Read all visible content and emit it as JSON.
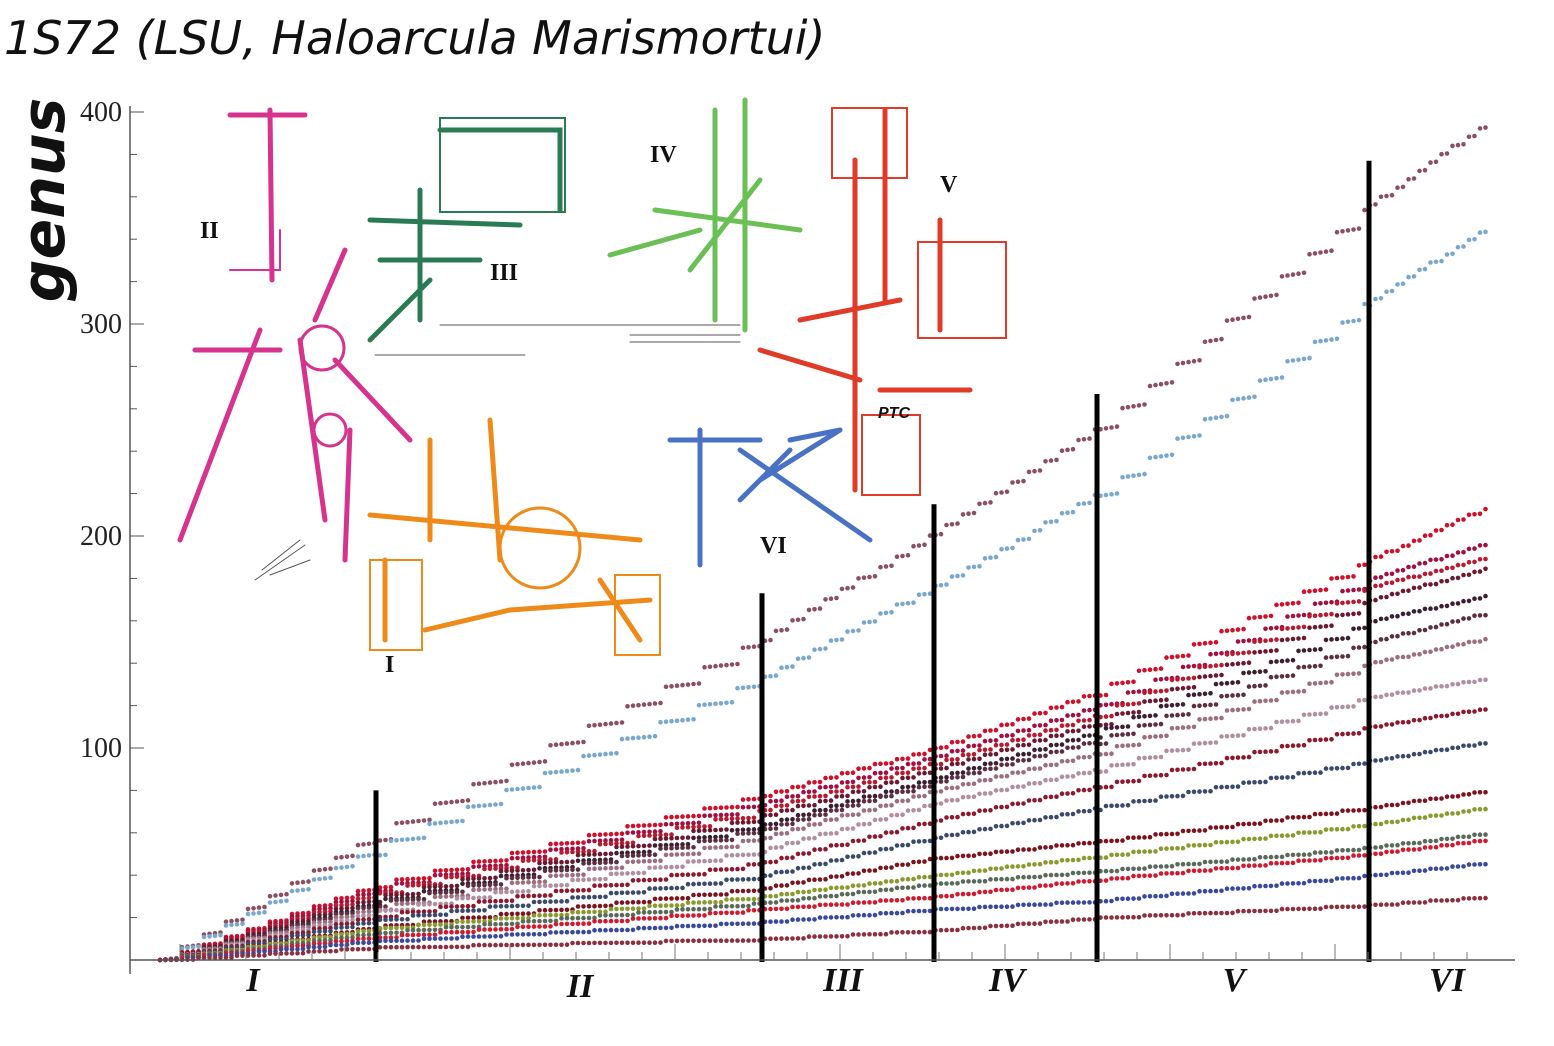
{
  "chart_data": {
    "type": "scatter",
    "title": "1S72 (LSU, Haloarcula Marismortui)",
    "ylabel": "genus",
    "xlabel": "",
    "ylim": [
      0,
      400
    ],
    "yticks": [
      100,
      200,
      300,
      400
    ],
    "grid": false,
    "legend": "none",
    "domains": [
      "I",
      "II",
      "III",
      "IV",
      "V",
      "VI"
    ],
    "domain_boundaries": [
      {
        "domain_index": 0,
        "top": 80
      },
      {
        "domain_index": 1,
        "top": 173
      },
      {
        "domain_index": 2,
        "top": 215
      },
      {
        "domain_index": 3,
        "top": 267
      },
      {
        "domain_index": 4,
        "top": 377
      }
    ],
    "series": [
      {
        "color": "#8a5060",
        "values": [
          0,
          60,
          152,
          202,
          252,
          356,
          396
        ]
      },
      {
        "color": "#7aa8cc",
        "values": [
          0,
          54,
          134,
          177,
          220,
          311,
          346
        ]
      },
      {
        "color": "#d0102a",
        "values": [
          0,
          36,
          78,
          100,
          127,
          189,
          214
        ]
      },
      {
        "color": "#a01040",
        "values": [
          0,
          34,
          74,
          96,
          120,
          180,
          197
        ]
      },
      {
        "color": "#b81a30",
        "values": [
          0,
          32,
          71,
          93,
          116,
          176,
          190
        ]
      },
      {
        "color": "#6a1a30",
        "values": [
          0,
          30,
          68,
          90,
          112,
          170,
          185
        ]
      },
      {
        "color": "#3a2030",
        "values": [
          0,
          28,
          64,
          86,
          108,
          160,
          172
        ]
      },
      {
        "color": "#5a3040",
        "values": [
          0,
          27,
          62,
          84,
          104,
          150,
          164
        ]
      },
      {
        "color": "#9a7080",
        "values": [
          0,
          25,
          58,
          80,
          98,
          140,
          152
        ]
      },
      {
        "color": "#b090a0",
        "values": [
          0,
          23,
          52,
          74,
          90,
          124,
          133
        ]
      },
      {
        "color": "#8a1a30",
        "values": [
          0,
          21,
          46,
          66,
          82,
          110,
          119
        ]
      },
      {
        "color": "#3a4a6a",
        "values": [
          0,
          19,
          40,
          58,
          72,
          94,
          103
        ]
      },
      {
        "color": "#7a1520",
        "values": [
          0,
          16,
          34,
          48,
          56,
          72,
          80
        ]
      },
      {
        "color": "#8a9a30",
        "values": [
          0,
          15,
          30,
          40,
          49,
          64,
          72
        ]
      },
      {
        "color": "#5a6a5a",
        "values": [
          0,
          13,
          27,
          36,
          42,
          53,
          60
        ]
      },
      {
        "color": "#d01a30",
        "values": [
          0,
          11,
          24,
          30,
          38,
          50,
          57
        ]
      },
      {
        "color": "#3a4a9a",
        "values": [
          0,
          9,
          18,
          24,
          28,
          40,
          46
        ]
      },
      {
        "color": "#8a3040",
        "values": [
          0,
          6,
          10,
          14,
          20,
          26,
          30
        ]
      }
    ]
  }
}
